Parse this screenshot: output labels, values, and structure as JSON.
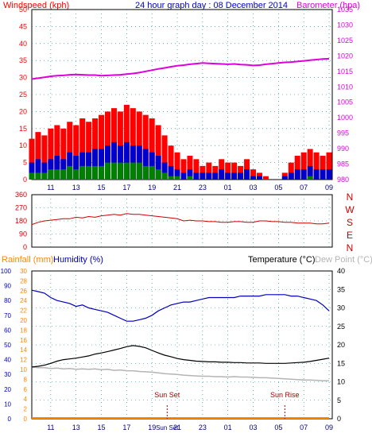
{
  "header": {
    "windspeed_label": "Windspeed (kph)",
    "title": "24 hour graph day : 08 December 2014",
    "barometer_label": "Barometer (hpa)"
  },
  "lower_header": {
    "rainfall_label": "Rainfall (mm)",
    "humidity_label": "Humidity (%)",
    "temperature_label": "Temperature (°C)",
    "dewpoint_label": "Dew Point (°C)"
  },
  "colors": {
    "wind_gust": "#ff0000",
    "wind_avg": "#0000cc",
    "wind_low": "#008000",
    "barometer": "#dd00dd",
    "direction": "#cc0000",
    "humidity": "#0000bb",
    "temperature": "#000000",
    "dewpoint": "#b4b4b4",
    "rainfall": "#ff8800",
    "axis_teal": "#008080",
    "frame": "#000000"
  },
  "x_time_labels": [
    "11",
    "13",
    "15",
    "17",
    "19",
    "21",
    "23",
    "01",
    "03",
    "05",
    "07",
    "09"
  ],
  "chart_data": [
    {
      "type": "line",
      "id": "wind",
      "y_left_ticks": [
        0,
        5,
        10,
        15,
        20,
        25,
        30,
        35,
        40,
        45,
        50
      ],
      "ylim_left": [
        0,
        50
      ],
      "y_right_ticks": [
        980,
        985,
        990,
        995,
        1000,
        1005,
        1010,
        1015,
        1020,
        1025,
        1030,
        1035
      ],
      "ylim_right": [
        980,
        1035
      ],
      "x_hours": [
        9.5,
        10,
        10.5,
        11,
        11.5,
        12,
        12.5,
        13,
        13.5,
        14,
        14.5,
        15,
        15.5,
        16,
        16.5,
        17,
        17.5,
        18,
        18.5,
        19,
        19.5,
        20,
        20.5,
        21,
        21.5,
        22,
        22.5,
        23,
        23.5,
        24,
        24.5,
        25,
        25.5,
        26,
        26.5,
        27,
        27.5,
        28,
        28.5,
        29,
        29.5,
        30,
        30.5,
        31,
        31.5,
        32,
        32.5,
        33
      ],
      "series": [
        {
          "axis": "left",
          "values": [
            12,
            14,
            13,
            15,
            16,
            15,
            17,
            16,
            18,
            17,
            18,
            19,
            20,
            21,
            20,
            22,
            21,
            20,
            19,
            18,
            16,
            13,
            10,
            8,
            6,
            7,
            6,
            4,
            5,
            4,
            6,
            5,
            5,
            4,
            6,
            3,
            2,
            1,
            0,
            0,
            2,
            5,
            7,
            8,
            9,
            8,
            7,
            8
          ]
        },
        {
          "axis": "left",
          "values": [
            5,
            6,
            5,
            6,
            7,
            6,
            8,
            7,
            8,
            8,
            9,
            9,
            10,
            11,
            10,
            11,
            10,
            10,
            9,
            8,
            7,
            5,
            4,
            3,
            2,
            3,
            2,
            2,
            2,
            2,
            3,
            2,
            2,
            2,
            3,
            1,
            1,
            0,
            0,
            0,
            1,
            2,
            3,
            3,
            4,
            3,
            3,
            3
          ]
        },
        {
          "axis": "left",
          "values": [
            2,
            2,
            2,
            3,
            3,
            3,
            4,
            3,
            4,
            4,
            4,
            4,
            5,
            5,
            5,
            5,
            5,
            5,
            4,
            4,
            3,
            2,
            1,
            1,
            0,
            1,
            0,
            0,
            0,
            0,
            0,
            0,
            0,
            0,
            0,
            0,
            0,
            0,
            0,
            0,
            0,
            0,
            0,
            0,
            1,
            0,
            0,
            0
          ]
        },
        {
          "axis": "right",
          "values": [
            1012.5,
            1012.8,
            1013.1,
            1013.4,
            1013.6,
            1013.7,
            1013.9,
            1014.0,
            1013.9,
            1013.8,
            1013.8,
            1013.6,
            1013.7,
            1013.8,
            1013.9,
            1014.1,
            1014.3,
            1014.6,
            1015.0,
            1015.4,
            1015.8,
            1016.1,
            1016.5,
            1016.8,
            1017.0,
            1017.3,
            1017.5,
            1017.7,
            1017.6,
            1017.5,
            1017.4,
            1017.3,
            1017.4,
            1017.2,
            1017.1,
            1016.9,
            1017.0,
            1017.3,
            1017.5,
            1017.7,
            1017.9,
            1018.0,
            1018.2,
            1018.4,
            1018.6,
            1018.8,
            1019.0,
            1019.1
          ]
        }
      ]
    },
    {
      "type": "line",
      "id": "direction",
      "y_ticks": [
        0,
        90,
        180,
        270,
        360
      ],
      "ylim": [
        0,
        360
      ],
      "compass_labels": [
        "N",
        "W",
        "S",
        "E",
        "N"
      ],
      "x_hours": [
        9.5,
        10,
        10.5,
        11,
        11.5,
        12,
        12.5,
        13,
        13.5,
        14,
        14.5,
        15,
        15.5,
        16,
        16.5,
        17,
        17.5,
        18,
        18.5,
        19,
        19.5,
        20,
        20.5,
        21,
        21.5,
        22,
        22.5,
        23,
        23.5,
        24,
        24.5,
        25,
        25.5,
        26,
        26.5,
        27,
        27.5,
        28,
        28.5,
        29,
        29.5,
        30,
        30.5,
        31,
        31.5,
        32,
        32.5,
        33
      ],
      "values": [
        155,
        170,
        180,
        185,
        190,
        195,
        195,
        205,
        200,
        210,
        205,
        215,
        220,
        225,
        220,
        230,
        225,
        225,
        220,
        215,
        210,
        205,
        200,
        195,
        180,
        185,
        180,
        180,
        175,
        175,
        170,
        170,
        175,
        175,
        170,
        170,
        180,
        180,
        175,
        175,
        170,
        170,
        165,
        165,
        165,
        160,
        160,
        165
      ]
    },
    {
      "type": "line",
      "id": "climate",
      "left_outer_ticks": [
        0,
        10,
        20,
        30,
        40,
        50,
        60,
        70,
        80,
        90,
        100
      ],
      "left_outer_lim": [
        0,
        100
      ],
      "left_inner_ticks": [
        0,
        2,
        4,
        6,
        8,
        10,
        12,
        14,
        16,
        18,
        20,
        22,
        24,
        26,
        28,
        30
      ],
      "left_inner_lim": [
        0,
        30
      ],
      "right_ticks": [
        0,
        5,
        10,
        15,
        20,
        25,
        30,
        35,
        40
      ],
      "right_lim": [
        0,
        40
      ],
      "x_hours": [
        9.5,
        10,
        10.5,
        11,
        11.5,
        12,
        12.5,
        13,
        13.5,
        14,
        14.5,
        15,
        15.5,
        16,
        16.5,
        17,
        17.5,
        18,
        18.5,
        19,
        19.5,
        20,
        20.5,
        21,
        21.5,
        22,
        22.5,
        23,
        23.5,
        24,
        24.5,
        25,
        25.5,
        26,
        26.5,
        27,
        27.5,
        28,
        28.5,
        29,
        29.5,
        30,
        30.5,
        31,
        31.5,
        32,
        32.5,
        33
      ],
      "series": [
        {
          "axis": "left_outer",
          "values": [
            87,
            86,
            85,
            82,
            80,
            79,
            78,
            76,
            77,
            75,
            74,
            73,
            72,
            70,
            68,
            66,
            66,
            67,
            68,
            70,
            73,
            75,
            77,
            78,
            79,
            79,
            80,
            81,
            82,
            82,
            82,
            82,
            82,
            83,
            83,
            83,
            83,
            84,
            84,
            84,
            84,
            83,
            83,
            82,
            81,
            80,
            77,
            73
          ]
        },
        {
          "axis": "right",
          "values": [
            14.0,
            14.2,
            14.5,
            15.0,
            15.6,
            16.0,
            16.2,
            16.4,
            16.7,
            17.0,
            17.5,
            17.8,
            18.2,
            18.6,
            19.0,
            19.5,
            19.8,
            19.6,
            19.2,
            18.5,
            17.8,
            17.2,
            16.8,
            16.3,
            16.0,
            15.8,
            15.6,
            15.5,
            15.4,
            15.4,
            15.3,
            15.3,
            15.2,
            15.2,
            15.1,
            15.1,
            15.1,
            15.0,
            15.0,
            15.0,
            15.0,
            15.1,
            15.2,
            15.3,
            15.5,
            15.8,
            16.1,
            16.4
          ]
        },
        {
          "axis": "right",
          "values": [
            14.0,
            13.8,
            13.8,
            13.6,
            13.7,
            13.5,
            13.6,
            13.4,
            13.5,
            13.4,
            13.5,
            13.3,
            13.4,
            13.1,
            13.2,
            13.0,
            13.0,
            12.8,
            12.7,
            12.6,
            12.4,
            12.2,
            12.1,
            12.0,
            11.8,
            11.7,
            11.6,
            11.5,
            11.5,
            11.4,
            11.4,
            11.3,
            11.4,
            11.3,
            11.3,
            11.2,
            11.1,
            11.1,
            11.0,
            10.9,
            10.8,
            10.7,
            10.6,
            10.5,
            10.5,
            10.4,
            10.3,
            10.3
          ]
        },
        {
          "axis": "left_inner",
          "values": [
            0,
            0,
            0,
            0,
            0,
            0,
            0,
            0,
            0,
            0,
            0,
            0,
            0,
            0,
            0,
            0,
            0,
            0,
            0,
            0,
            0,
            0,
            0,
            0,
            0,
            0,
            0,
            0,
            0,
            0,
            0,
            0,
            0,
            0,
            0,
            0,
            0,
            0,
            0,
            0,
            0,
            0,
            0,
            0,
            0,
            0,
            0,
            0
          ]
        }
      ],
      "markers": [
        {
          "label": "Sun Set",
          "hour": 20.2
        },
        {
          "label": "Sun Rise",
          "hour": 29.5
        }
      ],
      "extra_tick_label": "Sun Set"
    }
  ]
}
